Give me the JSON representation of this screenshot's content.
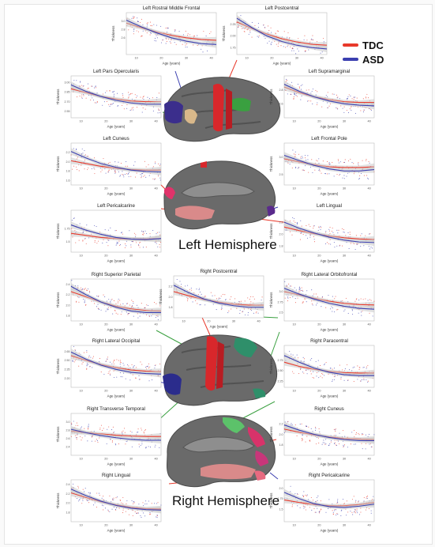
{
  "legend": {
    "items": [
      {
        "label": "TDC",
        "color": "#e8392b"
      },
      {
        "label": "ASD",
        "color": "#3b3fb0"
      }
    ]
  },
  "hemispheres": {
    "left_label": "Left Hemisphere",
    "right_label": "Right Hemisphere"
  },
  "colors": {
    "tdc": "#e8392b",
    "asd": "#3b3fb0",
    "ribbon": "#c8c8c8",
    "cortex": "#6a6a6a",
    "leader": "#3aa040"
  },
  "chart_data": [
    {
      "type": "scatter",
      "title": "Left Rostral Middle Frontal",
      "xlabel": "Age (years)",
      "ylabel": "Thickness",
      "xlim": [
        6,
        42
      ],
      "ylim": [
        2.2,
        3.2
      ],
      "xticks": [
        "10",
        "20",
        "30",
        "40"
      ],
      "yticks": [
        "2.6",
        "2.8",
        "3.0"
      ],
      "series": [
        {
          "name": "TDC",
          "x": [
            6,
            12,
            18,
            24,
            30,
            36,
            42
          ],
          "y": [
            2.95,
            2.84,
            2.74,
            2.66,
            2.6,
            2.56,
            2.54
          ]
        },
        {
          "name": "ASD",
          "x": [
            6,
            12,
            18,
            24,
            30,
            36,
            42
          ],
          "y": [
            3.02,
            2.86,
            2.72,
            2.6,
            2.52,
            2.46,
            2.44
          ]
        }
      ]
    },
    {
      "type": "scatter",
      "title": "Left Postcentral",
      "xlabel": "Age (years)",
      "ylabel": "Thickness",
      "xlim": [
        6,
        42
      ],
      "ylim": [
        1.6,
        2.5
      ],
      "xticks": [
        "10",
        "20",
        "30",
        "40"
      ],
      "yticks": [
        "1.75",
        "2.00",
        "2.25"
      ],
      "series": [
        {
          "name": "TDC",
          "x": [
            6,
            12,
            18,
            24,
            30,
            36,
            42
          ],
          "y": [
            2.3,
            2.16,
            2.04,
            1.94,
            1.87,
            1.82,
            1.8
          ]
        },
        {
          "name": "ASD",
          "x": [
            6,
            12,
            18,
            24,
            30,
            36,
            42
          ],
          "y": [
            2.38,
            2.18,
            2.0,
            1.88,
            1.8,
            1.75,
            1.72
          ]
        }
      ]
    },
    {
      "type": "scatter",
      "title": "Left Pars Opercularis",
      "xlabel": "Age (years)",
      "ylabel": "Thickness",
      "xlim": [
        6,
        42
      ],
      "ylim": [
        2.45,
        3.1
      ],
      "xticks": [
        "10",
        "20",
        "30",
        "40"
      ],
      "yticks": [
        "2.55",
        "2.70",
        "2.85",
        "3.00"
      ],
      "series": [
        {
          "name": "TDC",
          "x": [
            6,
            12,
            18,
            24,
            30,
            36,
            42
          ],
          "y": [
            2.9,
            2.84,
            2.78,
            2.74,
            2.71,
            2.7,
            2.7
          ]
        },
        {
          "name": "ASD",
          "x": [
            6,
            12,
            18,
            24,
            30,
            36,
            42
          ],
          "y": [
            2.96,
            2.86,
            2.78,
            2.72,
            2.68,
            2.66,
            2.66
          ]
        }
      ]
    },
    {
      "type": "scatter",
      "title": "Left Supramarginal",
      "xlabel": "Age (years)",
      "ylabel": "Thickness",
      "xlim": [
        6,
        42
      ],
      "ylim": [
        2.4,
        3.0
      ],
      "xticks": [
        "10",
        "20",
        "30",
        "40"
      ],
      "yticks": [
        "2.6",
        "2.8"
      ],
      "series": [
        {
          "name": "TDC",
          "x": [
            6,
            12,
            18,
            24,
            30,
            36,
            42
          ],
          "y": [
            2.84,
            2.76,
            2.7,
            2.66,
            2.63,
            2.62,
            2.62
          ]
        },
        {
          "name": "ASD",
          "x": [
            6,
            12,
            18,
            24,
            30,
            36,
            42
          ],
          "y": [
            2.88,
            2.78,
            2.7,
            2.64,
            2.6,
            2.58,
            2.57
          ]
        }
      ]
    },
    {
      "type": "scatter",
      "title": "Left Cuneus",
      "xlabel": "Age (years)",
      "ylabel": "Thickness",
      "xlim": [
        6,
        42
      ],
      "ylim": [
        1.5,
        2.4
      ],
      "xticks": [
        "10",
        "20",
        "30",
        "40"
      ],
      "yticks": [
        "1.6",
        "1.8",
        "2.0",
        "2.2"
      ],
      "series": [
        {
          "name": "TDC",
          "x": [
            6,
            12,
            18,
            24,
            30,
            36,
            42
          ],
          "y": [
            2.02,
            1.96,
            1.9,
            1.86,
            1.83,
            1.82,
            1.82
          ]
        },
        {
          "name": "ASD",
          "x": [
            6,
            12,
            18,
            24,
            30,
            36,
            42
          ],
          "y": [
            2.22,
            2.08,
            1.96,
            1.88,
            1.82,
            1.79,
            1.78
          ]
        }
      ]
    },
    {
      "type": "scatter",
      "title": "Left Frontal Pole",
      "xlabel": "Age (years)",
      "ylabel": "Thickness",
      "xlim": [
        6,
        42
      ],
      "ylim": [
        2.2,
        3.4
      ],
      "xticks": [
        "10",
        "20",
        "30",
        "40"
      ],
      "yticks": [
        "2.5",
        "3.0"
      ],
      "series": [
        {
          "name": "TDC",
          "x": [
            6,
            12,
            18,
            24,
            30,
            36,
            42
          ],
          "y": [
            2.95,
            2.86,
            2.78,
            2.72,
            2.7,
            2.7,
            2.72
          ]
        },
        {
          "name": "ASD",
          "x": [
            6,
            12,
            18,
            24,
            30,
            36,
            42
          ],
          "y": [
            3.05,
            2.9,
            2.76,
            2.66,
            2.6,
            2.6,
            2.64
          ]
        }
      ]
    },
    {
      "type": "scatter",
      "title": "Left Pericalcarine",
      "xlabel": "Age (years)",
      "ylabel": "Thickness",
      "xlim": [
        6,
        42
      ],
      "ylim": [
        1.3,
        2.1
      ],
      "xticks": [
        "10",
        "20",
        "30",
        "40"
      ],
      "yticks": [
        "1.5",
        "1.75"
      ],
      "series": [
        {
          "name": "TDC",
          "x": [
            6,
            12,
            18,
            24,
            30,
            36,
            42
          ],
          "y": [
            1.66,
            1.62,
            1.58,
            1.56,
            1.55,
            1.55,
            1.56
          ]
        },
        {
          "name": "ASD",
          "x": [
            6,
            12,
            18,
            24,
            30,
            36,
            42
          ],
          "y": [
            1.82,
            1.72,
            1.64,
            1.58,
            1.55,
            1.54,
            1.56
          ]
        }
      ]
    },
    {
      "type": "scatter",
      "title": "Left Lingual",
      "xlabel": "Age (years)",
      "ylabel": "Thickness",
      "xlim": [
        6,
        42
      ],
      "ylim": [
        1.7,
        2.4
      ],
      "xticks": [
        "10",
        "20",
        "30",
        "40"
      ],
      "yticks": [
        "1.8",
        "2.0",
        "2.2"
      ],
      "series": [
        {
          "name": "TDC",
          "x": [
            6,
            12,
            18,
            24,
            30,
            36,
            42
          ],
          "y": [
            2.12,
            2.06,
            2.01,
            1.97,
            1.94,
            1.92,
            1.91
          ]
        },
        {
          "name": "ASD",
          "x": [
            6,
            12,
            18,
            24,
            30,
            36,
            42
          ],
          "y": [
            2.2,
            2.1,
            2.02,
            1.95,
            1.9,
            1.87,
            1.86
          ]
        }
      ]
    },
    {
      "type": "scatter",
      "title": "Right Superior Parietal",
      "xlabel": "Age (years)",
      "ylabel": "Thickness",
      "xlim": [
        6,
        42
      ],
      "ylim": [
        1.7,
        2.5
      ],
      "xticks": [
        "10",
        "20",
        "30",
        "40"
      ],
      "yticks": [
        "1.8",
        "2.0",
        "2.2",
        "2.4"
      ],
      "series": [
        {
          "name": "TDC",
          "x": [
            6,
            12,
            18,
            24,
            30,
            36,
            42
          ],
          "y": [
            2.26,
            2.16,
            2.06,
            1.98,
            1.93,
            1.9,
            1.89
          ]
        },
        {
          "name": "ASD",
          "x": [
            6,
            12,
            18,
            24,
            30,
            36,
            42
          ],
          "y": [
            2.36,
            2.2,
            2.06,
            1.96,
            1.89,
            1.86,
            1.86
          ]
        }
      ]
    },
    {
      "type": "scatter",
      "title": "Right Postcentral",
      "xlabel": "Age (years)",
      "ylabel": "Thickness",
      "xlim": [
        6,
        42
      ],
      "ylim": [
        1.6,
        2.4
      ],
      "xticks": [
        "10",
        "20",
        "30",
        "40"
      ],
      "yticks": [
        "1.8",
        "2.0",
        "2.2"
      ],
      "series": [
        {
          "name": "TDC",
          "x": [
            6,
            12,
            18,
            24,
            30,
            36,
            42
          ],
          "y": [
            2.1,
            2.02,
            1.95,
            1.9,
            1.86,
            1.84,
            1.84
          ]
        },
        {
          "name": "ASD",
          "x": [
            6,
            12,
            18,
            24,
            30,
            36,
            42
          ],
          "y": [
            2.22,
            2.08,
            1.96,
            1.88,
            1.83,
            1.8,
            1.8
          ]
        }
      ]
    },
    {
      "type": "scatter",
      "title": "Right Lateral Orbitofrontal",
      "xlabel": "Age (years)",
      "ylabel": "Thickness",
      "xlim": [
        6,
        42
      ],
      "ylim": [
        2.3,
        3.3
      ],
      "xticks": [
        "10",
        "20",
        "30",
        "40"
      ],
      "yticks": [
        "2.5",
        "2.75",
        "3.0"
      ],
      "series": [
        {
          "name": "TDC",
          "x": [
            6,
            12,
            18,
            24,
            30,
            36,
            42
          ],
          "y": [
            3.0,
            2.92,
            2.84,
            2.77,
            2.72,
            2.69,
            2.68
          ]
        },
        {
          "name": "ASD",
          "x": [
            6,
            12,
            18,
            24,
            30,
            36,
            42
          ],
          "y": [
            3.08,
            2.94,
            2.82,
            2.72,
            2.65,
            2.6,
            2.58
          ]
        }
      ]
    },
    {
      "type": "scatter",
      "title": "Right Lateral Occipital",
      "xlabel": "Age (years)",
      "ylabel": "Thickness",
      "xlim": [
        6,
        42
      ],
      "ylim": [
        2.05,
        2.75
      ],
      "xticks": [
        "10",
        "20",
        "30",
        "40"
      ],
      "yticks": [
        "2.20",
        "2.35",
        "2.50",
        "2.65"
      ],
      "series": [
        {
          "name": "TDC",
          "x": [
            6,
            12,
            18,
            24,
            30,
            36,
            42
          ],
          "y": [
            2.58,
            2.5,
            2.43,
            2.38,
            2.34,
            2.32,
            2.31
          ]
        },
        {
          "name": "ASD",
          "x": [
            6,
            12,
            18,
            24,
            30,
            36,
            42
          ],
          "y": [
            2.64,
            2.52,
            2.42,
            2.35,
            2.3,
            2.28,
            2.27
          ]
        }
      ]
    },
    {
      "type": "scatter",
      "title": "Right Paracentral",
      "xlabel": "Age (years)",
      "ylabel": "Thickness",
      "xlim": [
        6,
        42
      ],
      "ylim": [
        2.1,
        3.1
      ],
      "xticks": [
        "10",
        "20",
        "30",
        "40"
      ],
      "yticks": [
        "2.25",
        "2.50",
        "2.75"
      ],
      "series": [
        {
          "name": "TDC",
          "x": [
            6,
            12,
            18,
            24,
            30,
            36,
            42
          ],
          "y": [
            2.7,
            2.6,
            2.53,
            2.48,
            2.45,
            2.44,
            2.44
          ]
        },
        {
          "name": "ASD",
          "x": [
            6,
            12,
            18,
            24,
            30,
            36,
            42
          ],
          "y": [
            2.86,
            2.7,
            2.56,
            2.46,
            2.4,
            2.38,
            2.38
          ]
        }
      ]
    },
    {
      "type": "scatter",
      "title": "Right Transverse Temporal",
      "xlabel": "Age (years)",
      "ylabel": "Thickness",
      "xlim": [
        6,
        42
      ],
      "ylim": [
        2.2,
        3.2
      ],
      "xticks": [
        "10",
        "20",
        "30",
        "40"
      ],
      "yticks": [
        "2.4",
        "2.6",
        "2.8",
        "3.0"
      ],
      "series": [
        {
          "name": "TDC",
          "x": [
            6,
            12,
            18,
            24,
            30,
            36,
            42
          ],
          "y": [
            2.78,
            2.74,
            2.71,
            2.68,
            2.66,
            2.65,
            2.65
          ]
        },
        {
          "name": "ASD",
          "x": [
            6,
            12,
            18,
            24,
            30,
            36,
            42
          ],
          "y": [
            2.82,
            2.74,
            2.67,
            2.62,
            2.58,
            2.56,
            2.56
          ]
        }
      ]
    },
    {
      "type": "scatter",
      "title": "Right Cuneus",
      "xlabel": "Age (years)",
      "ylabel": "Thickness",
      "xlim": [
        6,
        42
      ],
      "ylim": [
        1.6,
        2.4
      ],
      "xticks": [
        "10",
        "20",
        "30",
        "40"
      ],
      "yticks": [
        "1.8",
        "2.0",
        "2.2"
      ],
      "series": [
        {
          "name": "TDC",
          "x": [
            6,
            12,
            18,
            24,
            30,
            36,
            42
          ],
          "y": [
            2.1,
            2.04,
            1.99,
            1.95,
            1.92,
            1.91,
            1.9
          ]
        },
        {
          "name": "ASD",
          "x": [
            6,
            12,
            18,
            24,
            30,
            36,
            42
          ],
          "y": [
            2.18,
            2.08,
            2.0,
            1.94,
            1.9,
            1.88,
            1.88
          ]
        }
      ]
    },
    {
      "type": "scatter",
      "title": "Right Lingual",
      "xlabel": "Age (years)",
      "ylabel": "Thickness",
      "xlim": [
        6,
        42
      ],
      "ylim": [
        1.6,
        2.5
      ],
      "xticks": [
        "10",
        "20",
        "30",
        "40"
      ],
      "yticks": [
        "1.8",
        "2.0",
        "2.2",
        "2.4"
      ],
      "series": [
        {
          "name": "TDC",
          "x": [
            6,
            12,
            18,
            24,
            30,
            36,
            42
          ],
          "y": [
            2.22,
            2.12,
            2.03,
            1.96,
            1.91,
            1.88,
            1.87
          ]
        },
        {
          "name": "ASD",
          "x": [
            6,
            12,
            18,
            24,
            30,
            36,
            42
          ],
          "y": [
            2.3,
            2.16,
            2.04,
            1.95,
            1.89,
            1.86,
            1.85
          ]
        }
      ]
    },
    {
      "type": "scatter",
      "title": "Right Pericalcarine",
      "xlabel": "Age (years)",
      "ylabel": "Thickness",
      "xlim": [
        6,
        42
      ],
      "ylim": [
        1.2,
        2.2
      ],
      "xticks": [
        "10",
        "20",
        "30",
        "40"
      ],
      "yticks": [
        "1.5",
        "1.75",
        "2.0"
      ],
      "series": [
        {
          "name": "TDC",
          "x": [
            6,
            12,
            18,
            24,
            30,
            36,
            42
          ],
          "y": [
            1.72,
            1.66,
            1.61,
            1.58,
            1.58,
            1.61,
            1.66
          ]
        },
        {
          "name": "ASD",
          "x": [
            6,
            12,
            18,
            24,
            30,
            36,
            42
          ],
          "y": [
            1.9,
            1.75,
            1.63,
            1.56,
            1.54,
            1.57,
            1.62
          ]
        }
      ]
    }
  ]
}
